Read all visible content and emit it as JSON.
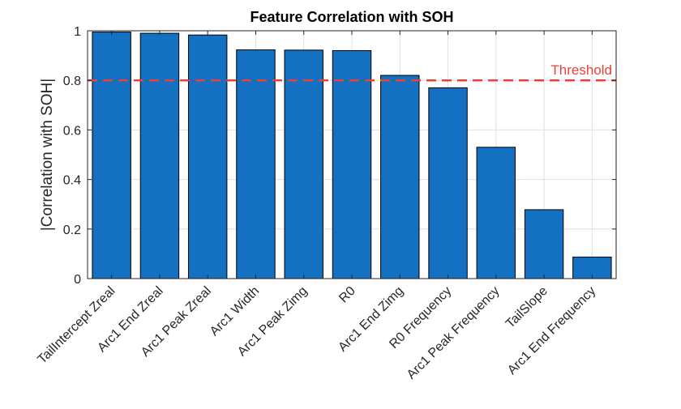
{
  "chart_data": {
    "type": "bar",
    "title": "Feature Correlation with SOH",
    "xlabel": "",
    "ylabel": "|Correlation with SOH|",
    "categories": [
      "TailIntercept Zreal",
      "Arc1 End Zreal",
      "Arc1 Peak Zreal",
      "Arc1 Width",
      "Arc1 Peak Zimg",
      "R0",
      "Arc1 End Zimg",
      "R0 Frequency",
      "Arc1 Peak Frequency",
      "TailSlope",
      "Arc1 End Frequency"
    ],
    "values": [
      0.995,
      0.99,
      0.983,
      0.923,
      0.922,
      0.92,
      0.82,
      0.77,
      0.53,
      0.278,
      0.087
    ],
    "ylim": [
      0,
      1
    ],
    "yticks": [
      0,
      0.2,
      0.4,
      0.6,
      0.8,
      1
    ],
    "ytick_labels": [
      "0",
      "0.2",
      "0.4",
      "0.6",
      "0.8",
      "1"
    ],
    "grid": true,
    "bar_color": "#1470C0",
    "threshold": {
      "value": 0.8,
      "label": "Threshold",
      "color": "#E8403A"
    }
  }
}
